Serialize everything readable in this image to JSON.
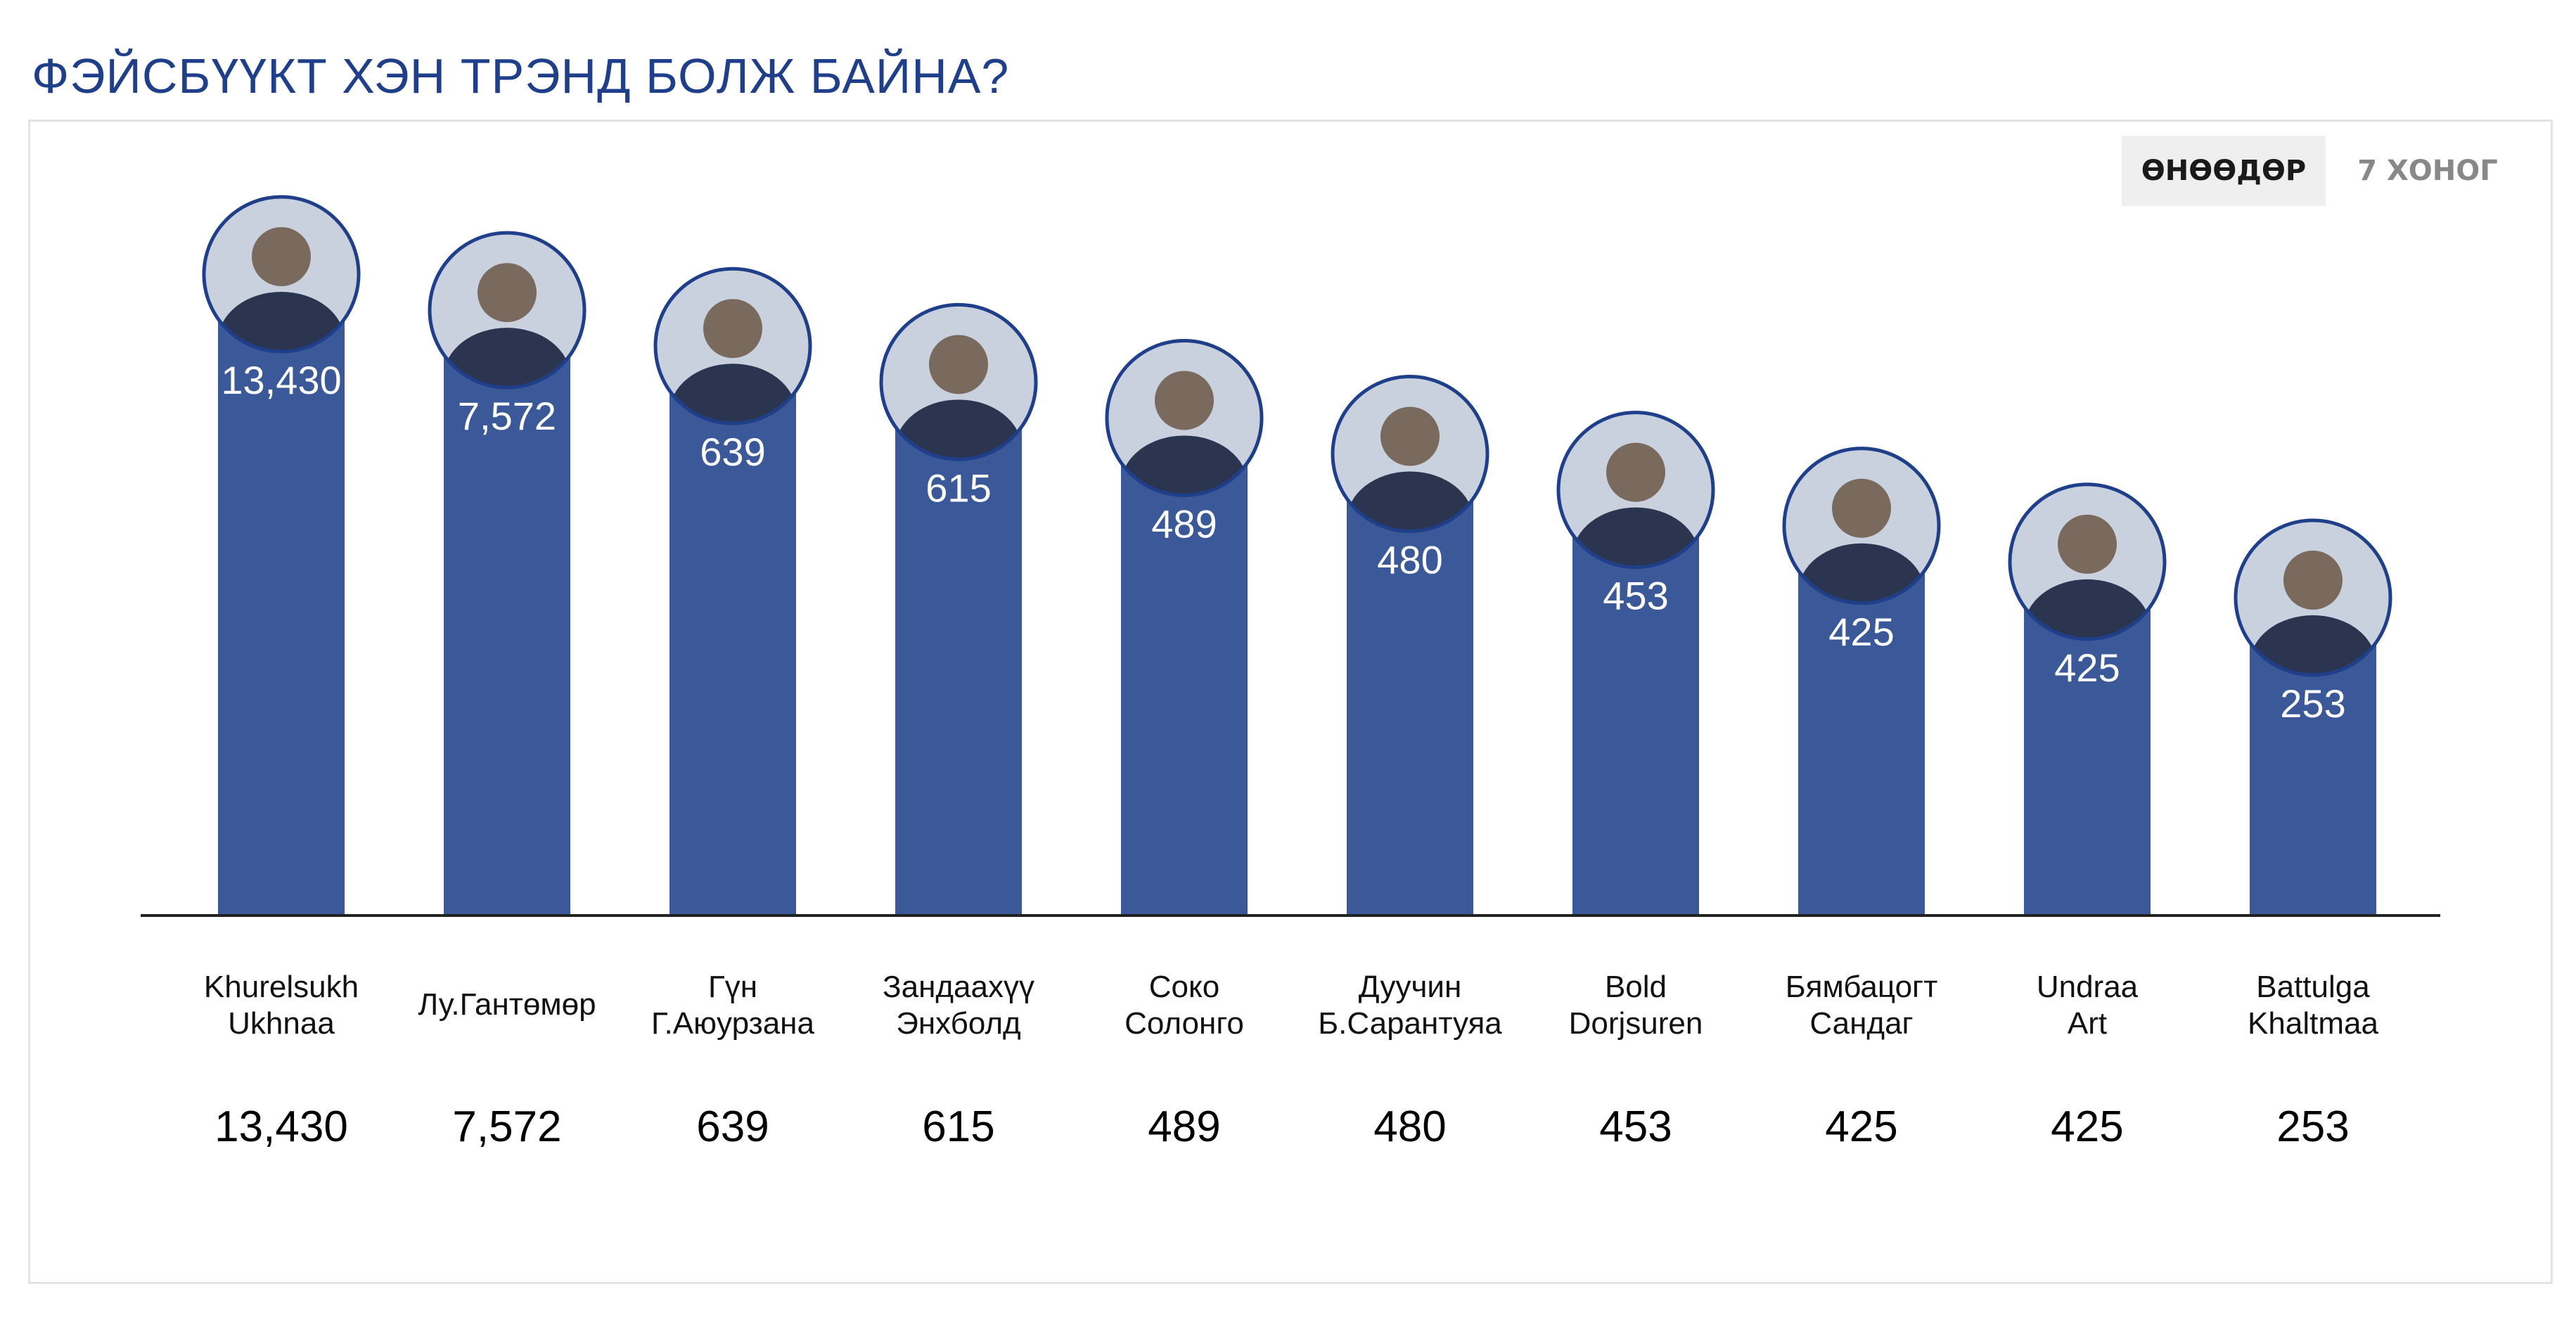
{
  "header": {
    "title": "ФЭЙСБҮҮКТ ХЭН ТРЭНД БОЛЖ БАЙНА?"
  },
  "tabs": [
    {
      "label": "ӨНӨӨДӨР",
      "active": true
    },
    {
      "label": "7 ХОНОГ",
      "active": false
    }
  ],
  "colors": {
    "bar": "#3b5998",
    "title": "#1f3f8a",
    "avatar_border": "#1f3f8a"
  },
  "chart_data": {
    "type": "bar",
    "categories": [
      [
        "Khurelsukh",
        "Ukhnaa"
      ],
      [
        "Лу.Гантөмөр"
      ],
      [
        "Гүн",
        "Г.Аюурзана"
      ],
      [
        "Зандаахүү",
        "Энхболд"
      ],
      [
        "Соко",
        "Солонго"
      ],
      [
        "Дуучин",
        "Б.Сарантуяа"
      ],
      [
        "Bold",
        "Dorjsuren"
      ],
      [
        "Бямбацогт",
        "Сандаг"
      ],
      [
        "Undraa",
        "Art"
      ],
      [
        "Battulga",
        "Khaltmaa"
      ]
    ],
    "values": [
      13430,
      7572,
      639,
      615,
      489,
      480,
      453,
      425,
      425,
      253
    ],
    "value_labels": [
      "13,430",
      "7,572",
      "639",
      "615",
      "489",
      "480",
      "453",
      "425",
      "425",
      "253"
    ],
    "avatars": [
      "person-photo",
      "person-photo",
      "person-photo",
      "person-photo",
      "person-photo",
      "person-photo",
      "person-photo",
      "person-photo",
      "person-photo",
      "person-photo"
    ],
    "scale": "rank (not proportional)",
    "grid": false,
    "legend": "none"
  }
}
